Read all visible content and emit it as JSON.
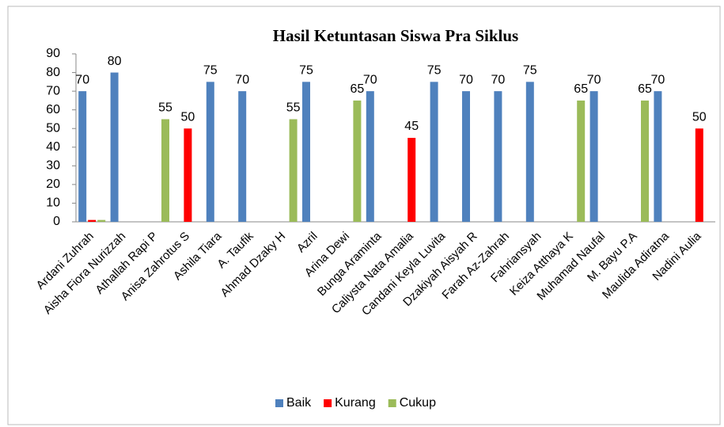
{
  "chart_data": {
    "type": "bar",
    "title": "Hasil Ketuntasan Siswa Pra Siklus",
    "categories": [
      "Ardani Zuhrah",
      "Aisha Fiora Nurizzah",
      "Athallah Rapi P",
      "Anisa Zahrotus S",
      "Ashila Tiara",
      "A. Taufik",
      "Ahmad Dzaky H",
      "Azril",
      "Arina Dewi",
      "Bunga Araminta",
      "Caliysta Nata Amalia",
      "Candani Keyla Luvita",
      "Dzakiyah Aisyah R",
      "Farah Az-Zahrah",
      "Fahriansyah",
      "Keiza Atthaya K",
      "Muhamad Naufal",
      "M. Bayu P.A",
      "Maulida Adiratna",
      "Nadini Aulia"
    ],
    "series": [
      {
        "name": "Baik",
        "color": "#4f81bd",
        "values": [
          70,
          80,
          null,
          null,
          75,
          70,
          null,
          75,
          null,
          70,
          null,
          75,
          70,
          70,
          75,
          null,
          70,
          null,
          70,
          null
        ],
        "value_labels": [
          "70",
          "80",
          null,
          null,
          "75",
          "70",
          null,
          "75",
          null,
          "70",
          null,
          "75",
          "70",
          "70",
          "75",
          null,
          "70",
          null,
          "70",
          null
        ]
      },
      {
        "name": "Kurang",
        "color": "#ff0000",
        "values": [
          1,
          null,
          null,
          50,
          null,
          null,
          null,
          null,
          null,
          null,
          45,
          null,
          null,
          null,
          null,
          null,
          null,
          null,
          null,
          50
        ],
        "value_labels": [
          null,
          null,
          null,
          "50",
          null,
          null,
          null,
          null,
          null,
          null,
          "45",
          null,
          null,
          null,
          null,
          null,
          null,
          null,
          null,
          "50"
        ]
      },
      {
        "name": "Cukup",
        "color": "#9bbb59",
        "values": [
          1,
          null,
          55,
          null,
          null,
          null,
          55,
          null,
          65,
          null,
          null,
          null,
          null,
          null,
          null,
          65,
          null,
          65,
          null,
          null
        ],
        "value_labels": [
          null,
          null,
          "55",
          null,
          null,
          null,
          "55",
          null,
          "65",
          null,
          null,
          null,
          null,
          null,
          null,
          "65",
          null,
          "65",
          null,
          null
        ]
      }
    ],
    "ylim": [
      0,
      90
    ],
    "yticks": [
      0,
      10,
      20,
      30,
      40,
      50,
      60,
      70,
      80,
      90
    ],
    "legend": "bottom"
  }
}
